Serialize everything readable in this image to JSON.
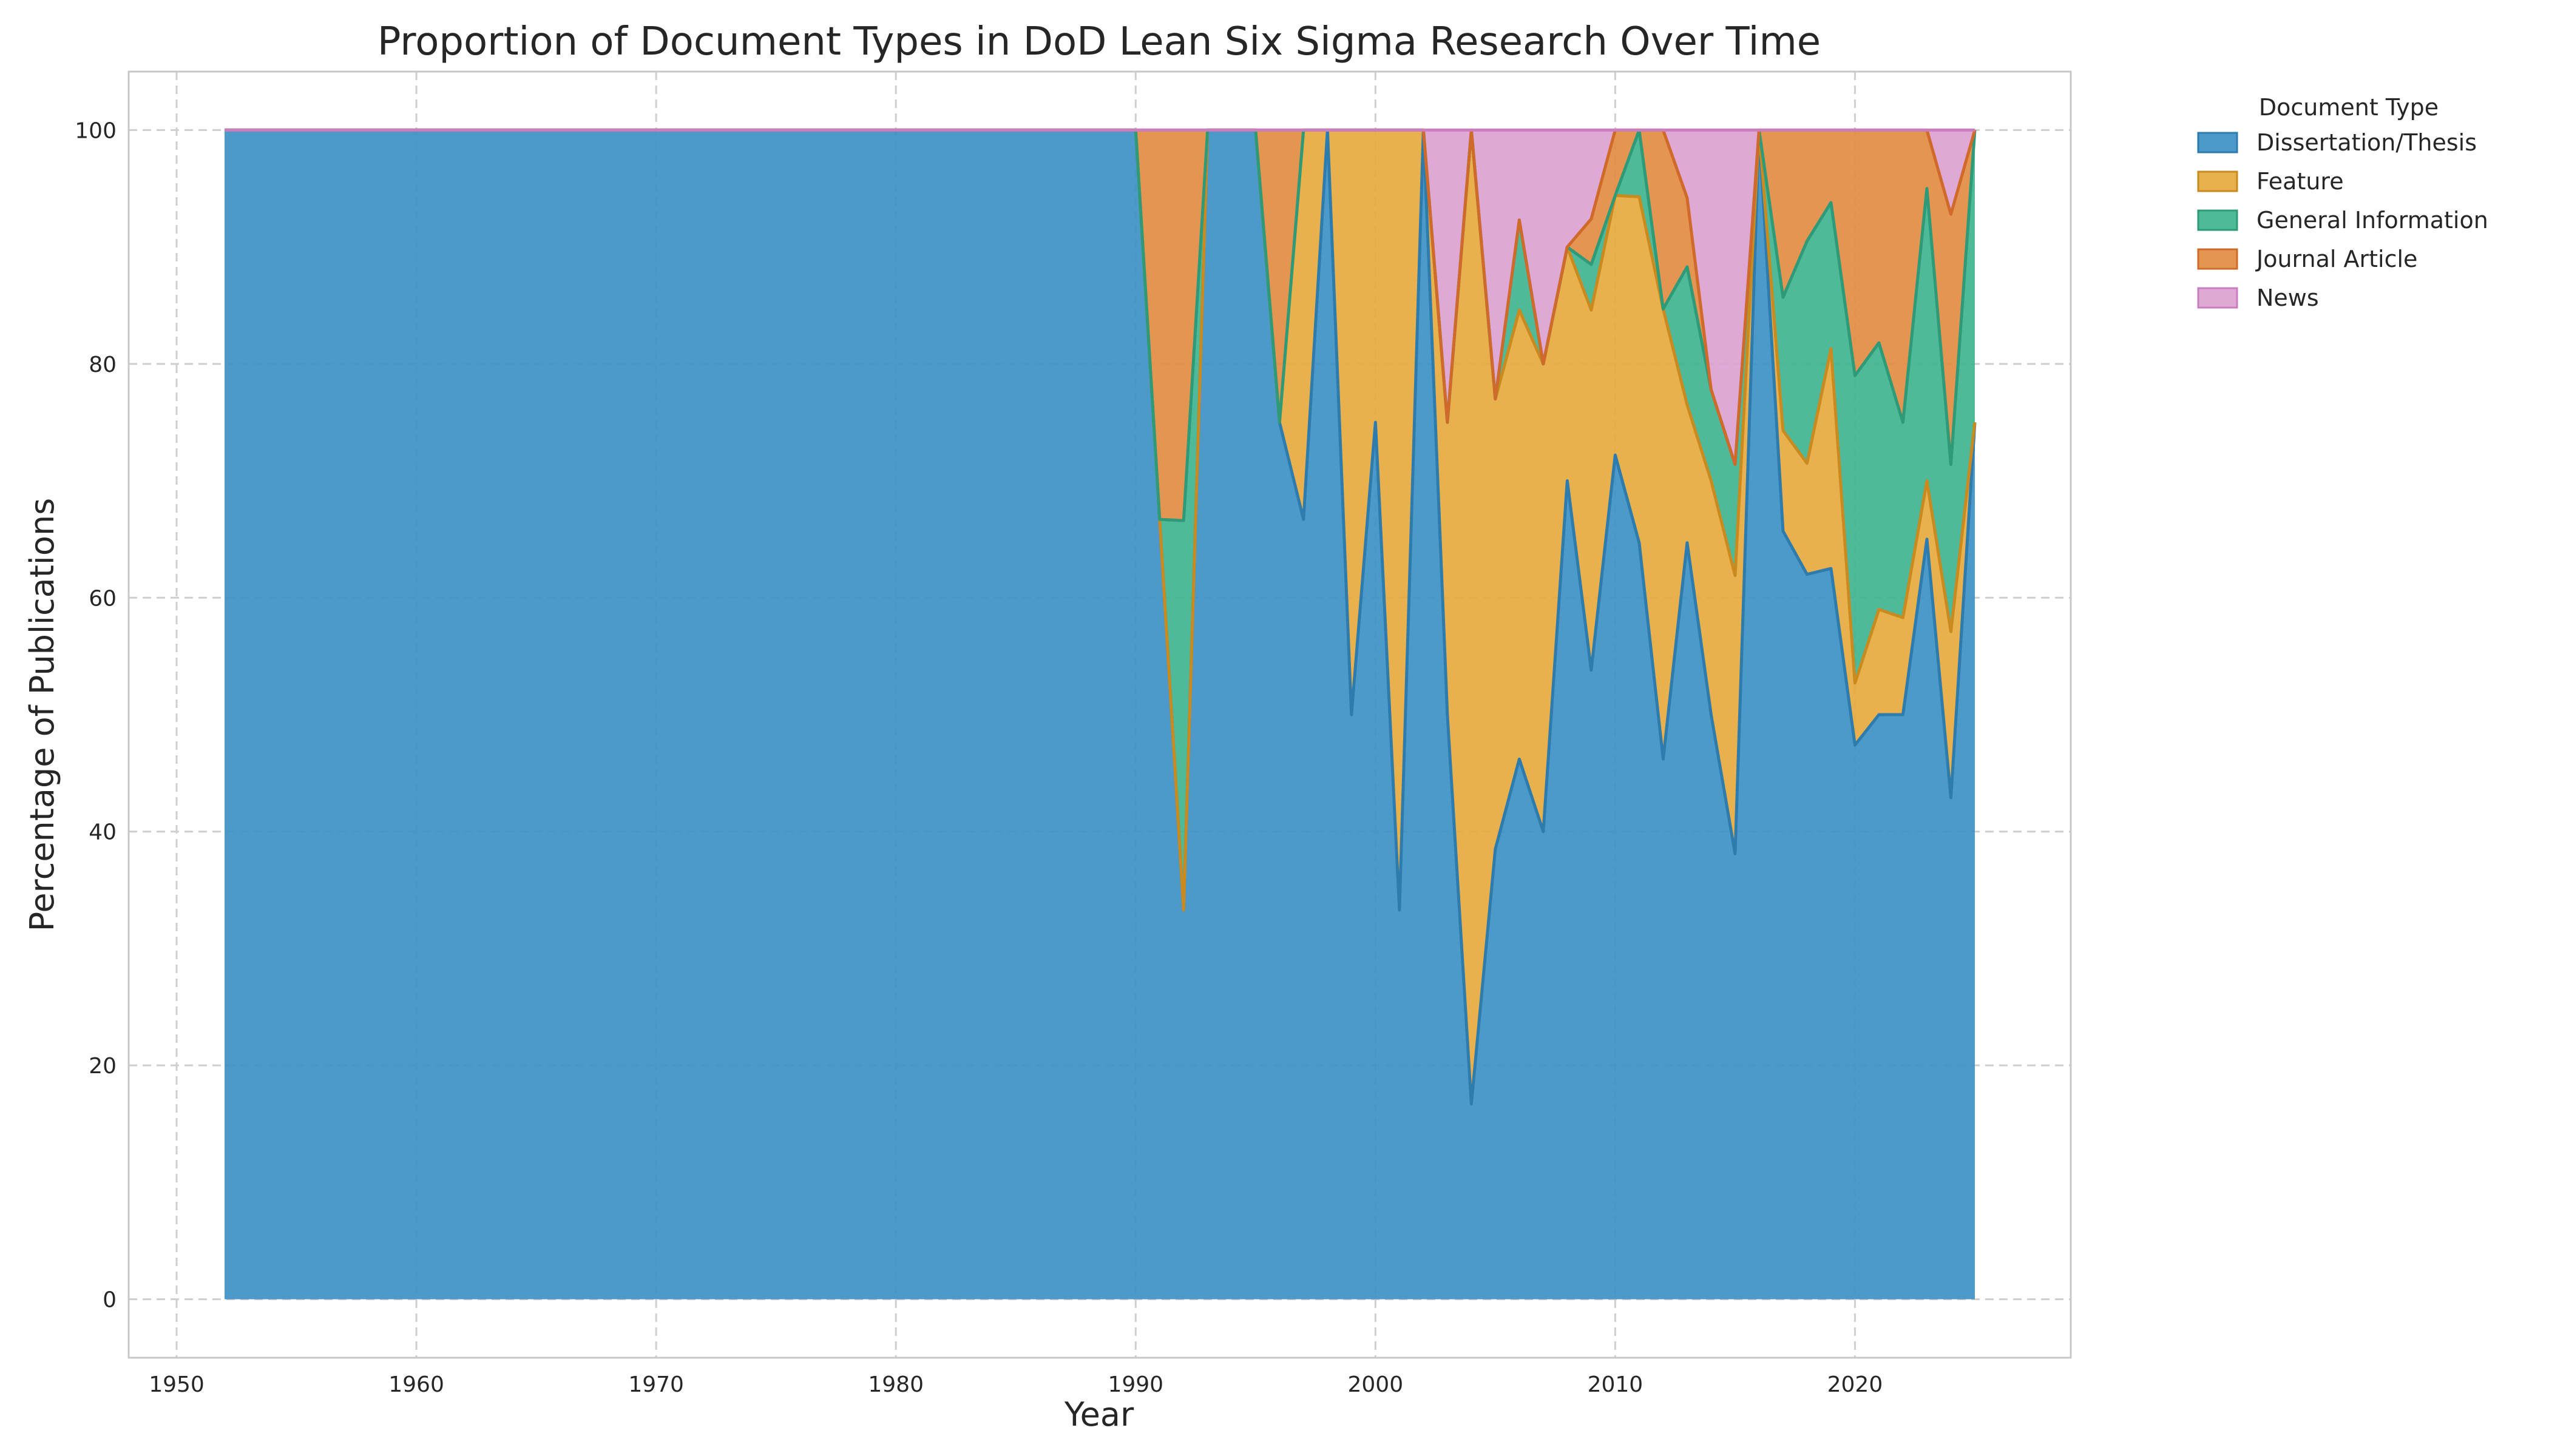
{
  "chart_data": {
    "type": "area",
    "stacked": true,
    "title": "Proportion of Document Types in DoD Lean Six Sigma Research Over Time",
    "xlabel": "Year",
    "ylabel": "Percentage of Publications",
    "xlim": [
      1948,
      2029
    ],
    "ylim": [
      -5,
      105
    ],
    "xticks": [
      1950,
      1960,
      1970,
      1980,
      1990,
      2000,
      2010,
      2020
    ],
    "yticks": [
      0,
      20,
      40,
      60,
      80,
      100
    ],
    "grid": true,
    "legend": {
      "title": "Document Type",
      "placement": "outside-top-right"
    },
    "x": [
      1952,
      1953,
      1954,
      1955,
      1956,
      1957,
      1958,
      1959,
      1960,
      1961,
      1962,
      1963,
      1964,
      1965,
      1966,
      1967,
      1968,
      1969,
      1970,
      1971,
      1972,
      1973,
      1974,
      1975,
      1976,
      1977,
      1978,
      1979,
      1980,
      1981,
      1982,
      1983,
      1984,
      1985,
      1986,
      1987,
      1988,
      1989,
      1990,
      1991,
      1992,
      1993,
      1994,
      1995,
      1996,
      1997,
      1998,
      1999,
      2000,
      2001,
      2002,
      2003,
      2004,
      2005,
      2006,
      2007,
      2008,
      2009,
      2010,
      2011,
      2012,
      2013,
      2014,
      2015,
      2016,
      2017,
      2018,
      2019,
      2020,
      2021,
      2022,
      2023,
      2024,
      2025
    ],
    "series": [
      {
        "name": "Dissertation/Thesis",
        "color": "#3A8FC4",
        "values": [
          100,
          100,
          100,
          100,
          100,
          100,
          100,
          100,
          100,
          100,
          100,
          100,
          100,
          100,
          100,
          100,
          100,
          100,
          100,
          100,
          100,
          100,
          100,
          100,
          100,
          100,
          100,
          100,
          100,
          100,
          100,
          100,
          100,
          100,
          100,
          100,
          100,
          100,
          100,
          66.7,
          33.3,
          100,
          100,
          100,
          75,
          66.7,
          100,
          50,
          75,
          33.3,
          100,
          50,
          16.7,
          38.5,
          46.2,
          40,
          70,
          53.8,
          72.2,
          64.7,
          46.2,
          64.7,
          50,
          38.1,
          100,
          65.7,
          62,
          62.5,
          47.4,
          50,
          50,
          65,
          42.9,
          75
        ]
      },
      {
        "name": "Feature",
        "color": "#E6A83A",
        "values": [
          0,
          0,
          0,
          0,
          0,
          0,
          0,
          0,
          0,
          0,
          0,
          0,
          0,
          0,
          0,
          0,
          0,
          0,
          0,
          0,
          0,
          0,
          0,
          0,
          0,
          0,
          0,
          0,
          0,
          0,
          0,
          0,
          0,
          0,
          0,
          0,
          0,
          0,
          0,
          0,
          0,
          0,
          0,
          0,
          0,
          33.3,
          0,
          50,
          25,
          66.7,
          0,
          25,
          83.3,
          38.5,
          38.4,
          40,
          20,
          30.8,
          22.2,
          29.6,
          38.5,
          11.8,
          20,
          23.8,
          0,
          8.6,
          9.5,
          18.8,
          5.3,
          9,
          8.3,
          5,
          14.2,
          0
        ]
      },
      {
        "name": "General Information",
        "color": "#3BB28E",
        "values": [
          0,
          0,
          0,
          0,
          0,
          0,
          0,
          0,
          0,
          0,
          0,
          0,
          0,
          0,
          0,
          0,
          0,
          0,
          0,
          0,
          0,
          0,
          0,
          0,
          0,
          0,
          0,
          0,
          0,
          0,
          0,
          0,
          0,
          0,
          0,
          0,
          0,
          0,
          0,
          0,
          33.3,
          0,
          0,
          0,
          0,
          0,
          0,
          0,
          0,
          0,
          0,
          0,
          0,
          0,
          7.7,
          0,
          0,
          3.9,
          0,
          5.7,
          0,
          11.8,
          7.8,
          9.5,
          0,
          11.4,
          19,
          12.5,
          26.3,
          22.8,
          16.7,
          25,
          14.3,
          25
        ]
      },
      {
        "name": "Journal Article",
        "color": "#E08A3E",
        "values": [
          0,
          0,
          0,
          0,
          0,
          0,
          0,
          0,
          0,
          0,
          0,
          0,
          0,
          0,
          0,
          0,
          0,
          0,
          0,
          0,
          0,
          0,
          0,
          0,
          0,
          0,
          0,
          0,
          0,
          0,
          0,
          0,
          0,
          0,
          0,
          0,
          0,
          0,
          0,
          33.3,
          33.4,
          0,
          0,
          0,
          25,
          0,
          0,
          0,
          0,
          0,
          0,
          0,
          0,
          0,
          0,
          0,
          0,
          3.9,
          5.6,
          0,
          15.3,
          5.9,
          0,
          0,
          0,
          14.3,
          9.5,
          6.2,
          21,
          18.2,
          25,
          5,
          21.4,
          0
        ]
      },
      {
        "name": "News",
        "color": "#DB9FD0",
        "values": [
          0,
          0,
          0,
          0,
          0,
          0,
          0,
          0,
          0,
          0,
          0,
          0,
          0,
          0,
          0,
          0,
          0,
          0,
          0,
          0,
          0,
          0,
          0,
          0,
          0,
          0,
          0,
          0,
          0,
          0,
          0,
          0,
          0,
          0,
          0,
          0,
          0,
          0,
          0,
          0,
          0,
          0,
          0,
          0,
          0,
          0,
          0,
          0,
          0,
          0,
          0,
          25,
          0,
          23,
          7.7,
          20,
          10,
          7.6,
          0,
          0,
          0,
          5.8,
          22.2,
          28.6,
          0,
          0,
          0,
          0,
          0,
          0,
          0,
          0,
          7.2,
          0
        ]
      }
    ]
  }
}
